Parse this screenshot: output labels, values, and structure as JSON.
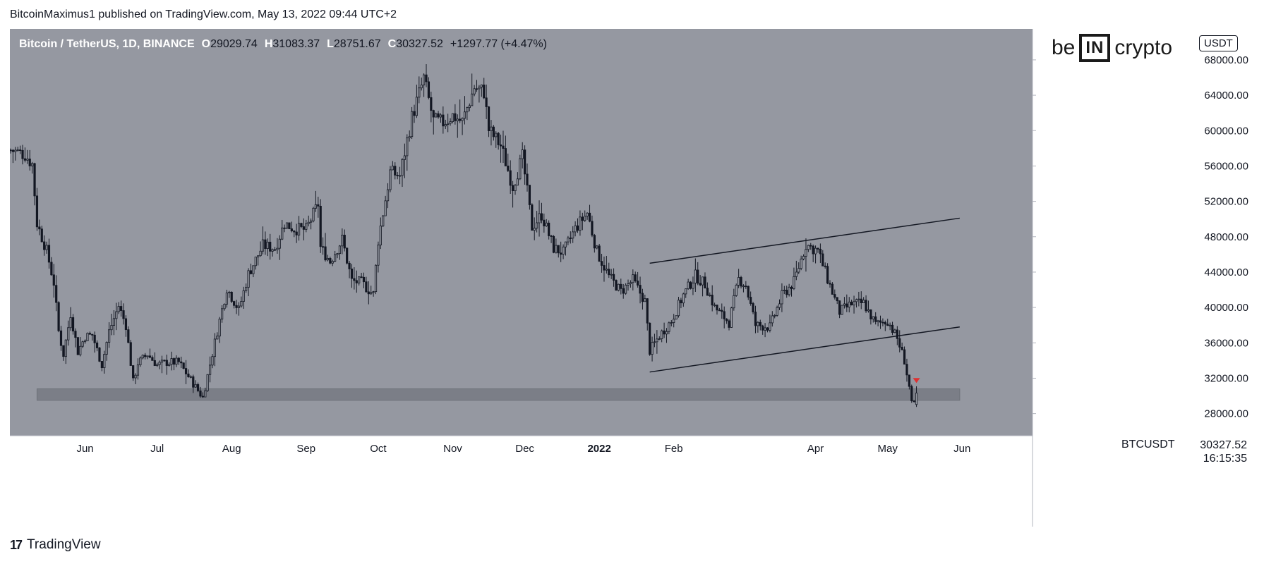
{
  "header": {
    "publisher_line": "BitcoinMaximus1 published on TradingView.com, May 13, 2022 09:44 UTC+2"
  },
  "legend": {
    "symbol": "Bitcoin / TetherUS, 1D, BINANCE",
    "open_label": "O",
    "open": "29029.74",
    "high_label": "H",
    "high": "31083.37",
    "low_label": "L",
    "low": "28751.67",
    "close_label": "C",
    "close": "30327.52",
    "change": "+1297.77 (+4.47%)"
  },
  "currency_badge": "USDT",
  "logo": {
    "prefix": "be",
    "box": "IN",
    "suffix": "crypto"
  },
  "ticker_label": "BTCUSDT",
  "price_label": {
    "price": "30327.52",
    "countdown": "16:15:35"
  },
  "footer": {
    "brand": "TradingView",
    "mark": "17"
  },
  "colors": {
    "plot_bg": "#9598a1",
    "candle": "#131722",
    "zone": "#7b7e87",
    "arrow": "#e03030",
    "axis_bg": "#ffffff"
  },
  "chart_data": {
    "type": "candlestick",
    "timeframe": "1D",
    "y_axis": {
      "ticks": [
        "28000.00",
        "32000.00",
        "36000.00",
        "40000.00",
        "44000.00",
        "48000.00",
        "52000.00",
        "56000.00",
        "60000.00",
        "64000.00",
        "68000.00"
      ],
      "range": [
        25500,
        71500
      ]
    },
    "x_axis": {
      "ticks": [
        "Jun",
        "Jul",
        "Aug",
        "Sep",
        "Oct",
        "Nov",
        "Dec",
        "2022",
        "Feb",
        "Apr",
        "May",
        "Jun"
      ],
      "tick_dates": [
        "2021-06-01",
        "2021-07-01",
        "2021-08-01",
        "2021-09-01",
        "2021-10-01",
        "2021-11-01",
        "2021-12-01",
        "2022-01-01",
        "2022-02-01",
        "2022-04-01",
        "2022-05-01",
        "2022-06-01"
      ],
      "range": [
        "2021-05-01",
        "2022-06-30"
      ]
    },
    "close_path": [
      [
        "2021-05-01",
        57800
      ],
      [
        "2021-05-07",
        57300
      ],
      [
        "2021-05-10",
        56200
      ],
      [
        "2021-05-12",
        49500
      ],
      [
        "2021-05-16",
        46400
      ],
      [
        "2021-05-19",
        42800
      ],
      [
        "2021-05-21",
        37300
      ],
      [
        "2021-05-23",
        34700
      ],
      [
        "2021-05-26",
        39300
      ],
      [
        "2021-05-29",
        35000
      ],
      [
        "2021-06-01",
        36700
      ],
      [
        "2021-06-04",
        36900
      ],
      [
        "2021-06-08",
        33500
      ],
      [
        "2021-06-11",
        37300
      ],
      [
        "2021-06-15",
        40200
      ],
      [
        "2021-06-18",
        38000
      ],
      [
        "2021-06-21",
        31600
      ],
      [
        "2021-06-23",
        33700
      ],
      [
        "2021-06-27",
        34700
      ],
      [
        "2021-07-01",
        33500
      ],
      [
        "2021-07-05",
        33800
      ],
      [
        "2021-07-10",
        33800
      ],
      [
        "2021-07-15",
        31800
      ],
      [
        "2021-07-20",
        29800
      ],
      [
        "2021-07-22",
        32300
      ],
      [
        "2021-07-26",
        37300
      ],
      [
        "2021-07-30",
        42200
      ],
      [
        "2021-08-04",
        39700
      ],
      [
        "2021-08-08",
        43800
      ],
      [
        "2021-08-14",
        47000
      ],
      [
        "2021-08-19",
        46700
      ],
      [
        "2021-08-23",
        49500
      ],
      [
        "2021-08-27",
        48900
      ],
      [
        "2021-09-01",
        48800
      ],
      [
        "2021-09-06",
        51700
      ],
      [
        "2021-09-07",
        46800
      ],
      [
        "2021-09-11",
        45200
      ],
      [
        "2021-09-16",
        47700
      ],
      [
        "2021-09-20",
        43000
      ],
      [
        "2021-09-24",
        42800
      ],
      [
        "2021-09-29",
        41500
      ],
      [
        "2021-10-01",
        47600
      ],
      [
        "2021-10-06",
        55300
      ],
      [
        "2021-10-10",
        54900
      ],
      [
        "2021-10-15",
        61500
      ],
      [
        "2021-10-20",
        65900
      ],
      [
        "2021-10-24",
        61100
      ],
      [
        "2021-10-28",
        60900
      ],
      [
        "2021-11-01",
        61700
      ],
      [
        "2021-11-05",
        61000
      ],
      [
        "2021-11-10",
        64900
      ],
      [
        "2021-11-14",
        64400
      ],
      [
        "2021-11-16",
        60100
      ],
      [
        "2021-11-21",
        58300
      ],
      [
        "2021-11-26",
        53700
      ],
      [
        "2021-11-30",
        57000
      ],
      [
        "2021-12-04",
        49100
      ],
      [
        "2021-12-08",
        50500
      ],
      [
        "2021-12-13",
        46700
      ],
      [
        "2021-12-17",
        46200
      ],
      [
        "2021-12-22",
        48900
      ],
      [
        "2021-12-27",
        50700
      ],
      [
        "2021-12-31",
        46300
      ],
      [
        "2022-01-05",
        43500
      ],
      [
        "2022-01-10",
        41800
      ],
      [
        "2022-01-15",
        43100
      ],
      [
        "2022-01-20",
        40700
      ],
      [
        "2022-01-22",
        35100
      ],
      [
        "2022-01-26",
        36800
      ],
      [
        "2022-01-31",
        38500
      ],
      [
        "2022-02-05",
        41400
      ],
      [
        "2022-02-10",
        43600
      ],
      [
        "2022-02-14",
        42600
      ],
      [
        "2022-02-18",
        40000
      ],
      [
        "2022-02-24",
        38300
      ],
      [
        "2022-02-28",
        43200
      ],
      [
        "2022-03-03",
        42500
      ],
      [
        "2022-03-07",
        38000
      ],
      [
        "2022-03-13",
        37800
      ],
      [
        "2022-03-18",
        41300
      ],
      [
        "2022-03-23",
        42900
      ],
      [
        "2022-03-28",
        47100
      ],
      [
        "2022-04-02",
        46400
      ],
      [
        "2022-04-06",
        43200
      ],
      [
        "2022-04-11",
        39500
      ],
      [
        "2022-04-16",
        40400
      ],
      [
        "2022-04-21",
        40500
      ],
      [
        "2022-04-26",
        38100
      ],
      [
        "2022-05-01",
        38500
      ],
      [
        "2022-05-05",
        36500
      ],
      [
        "2022-05-08",
        34000
      ],
      [
        "2022-05-10",
        31000
      ],
      [
        "2022-05-11",
        29000
      ],
      [
        "2022-05-12",
        29030
      ],
      [
        "2022-05-13",
        30327
      ]
    ],
    "last_candle": {
      "date": "2022-05-13",
      "open": 29029.74,
      "high": 31083.37,
      "low": 28751.67,
      "close": 30327.52,
      "change": 1297.77,
      "change_pct": 4.47
    },
    "channel": {
      "upper": [
        [
          "2022-01-22",
          45000
        ],
        [
          "2022-05-31",
          50100
        ]
      ],
      "lower": [
        [
          "2022-01-22",
          32700
        ],
        [
          "2022-05-31",
          37800
        ]
      ]
    },
    "support_zone": [
      29500,
      30800
    ],
    "support_zone_dates": [
      "2021-05-12",
      "2022-05-31"
    ],
    "arrow_marker": {
      "date": "2022-05-13",
      "price": 31700,
      "direction": "down"
    }
  }
}
